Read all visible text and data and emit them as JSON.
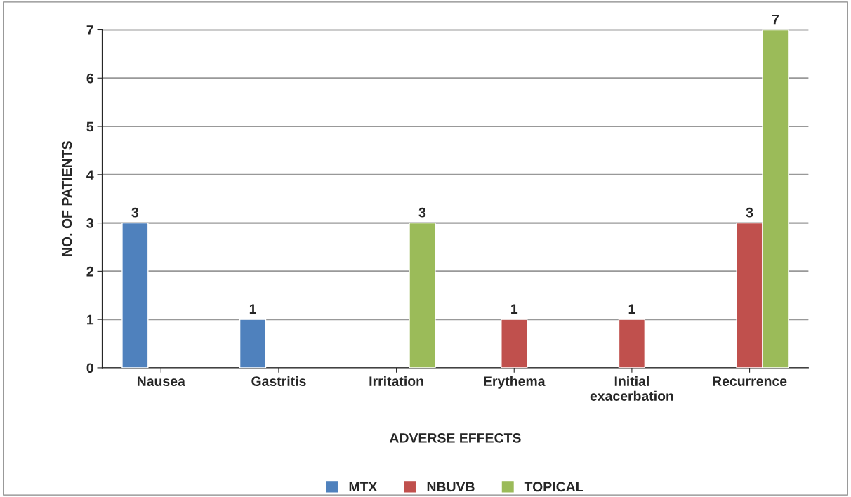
{
  "chart_data": {
    "type": "bar",
    "xlabel": "ADVERSE EFFECTS",
    "ylabel": "NO. OF PATIENTS",
    "categories": [
      "Nausea",
      "Gastritis",
      "Irritation",
      "Erythema",
      "Initial\nexacerbation",
      "Recurrence"
    ],
    "series": [
      {
        "name": "MTX",
        "color": "#4f81bd",
        "values": [
          3,
          1,
          null,
          null,
          null,
          null
        ]
      },
      {
        "name": "NBUVB",
        "color": "#c0504d",
        "values": [
          null,
          null,
          null,
          1,
          1,
          3
        ]
      },
      {
        "name": "TOPICAL",
        "color": "#9bbb59",
        "values": [
          null,
          null,
          3,
          null,
          null,
          7
        ]
      }
    ],
    "ylim": [
      0,
      7
    ],
    "yticks": [
      0,
      1,
      2,
      3,
      4,
      5,
      6,
      7
    ],
    "grid": "y",
    "legend": "bottom",
    "data_labels": true
  }
}
